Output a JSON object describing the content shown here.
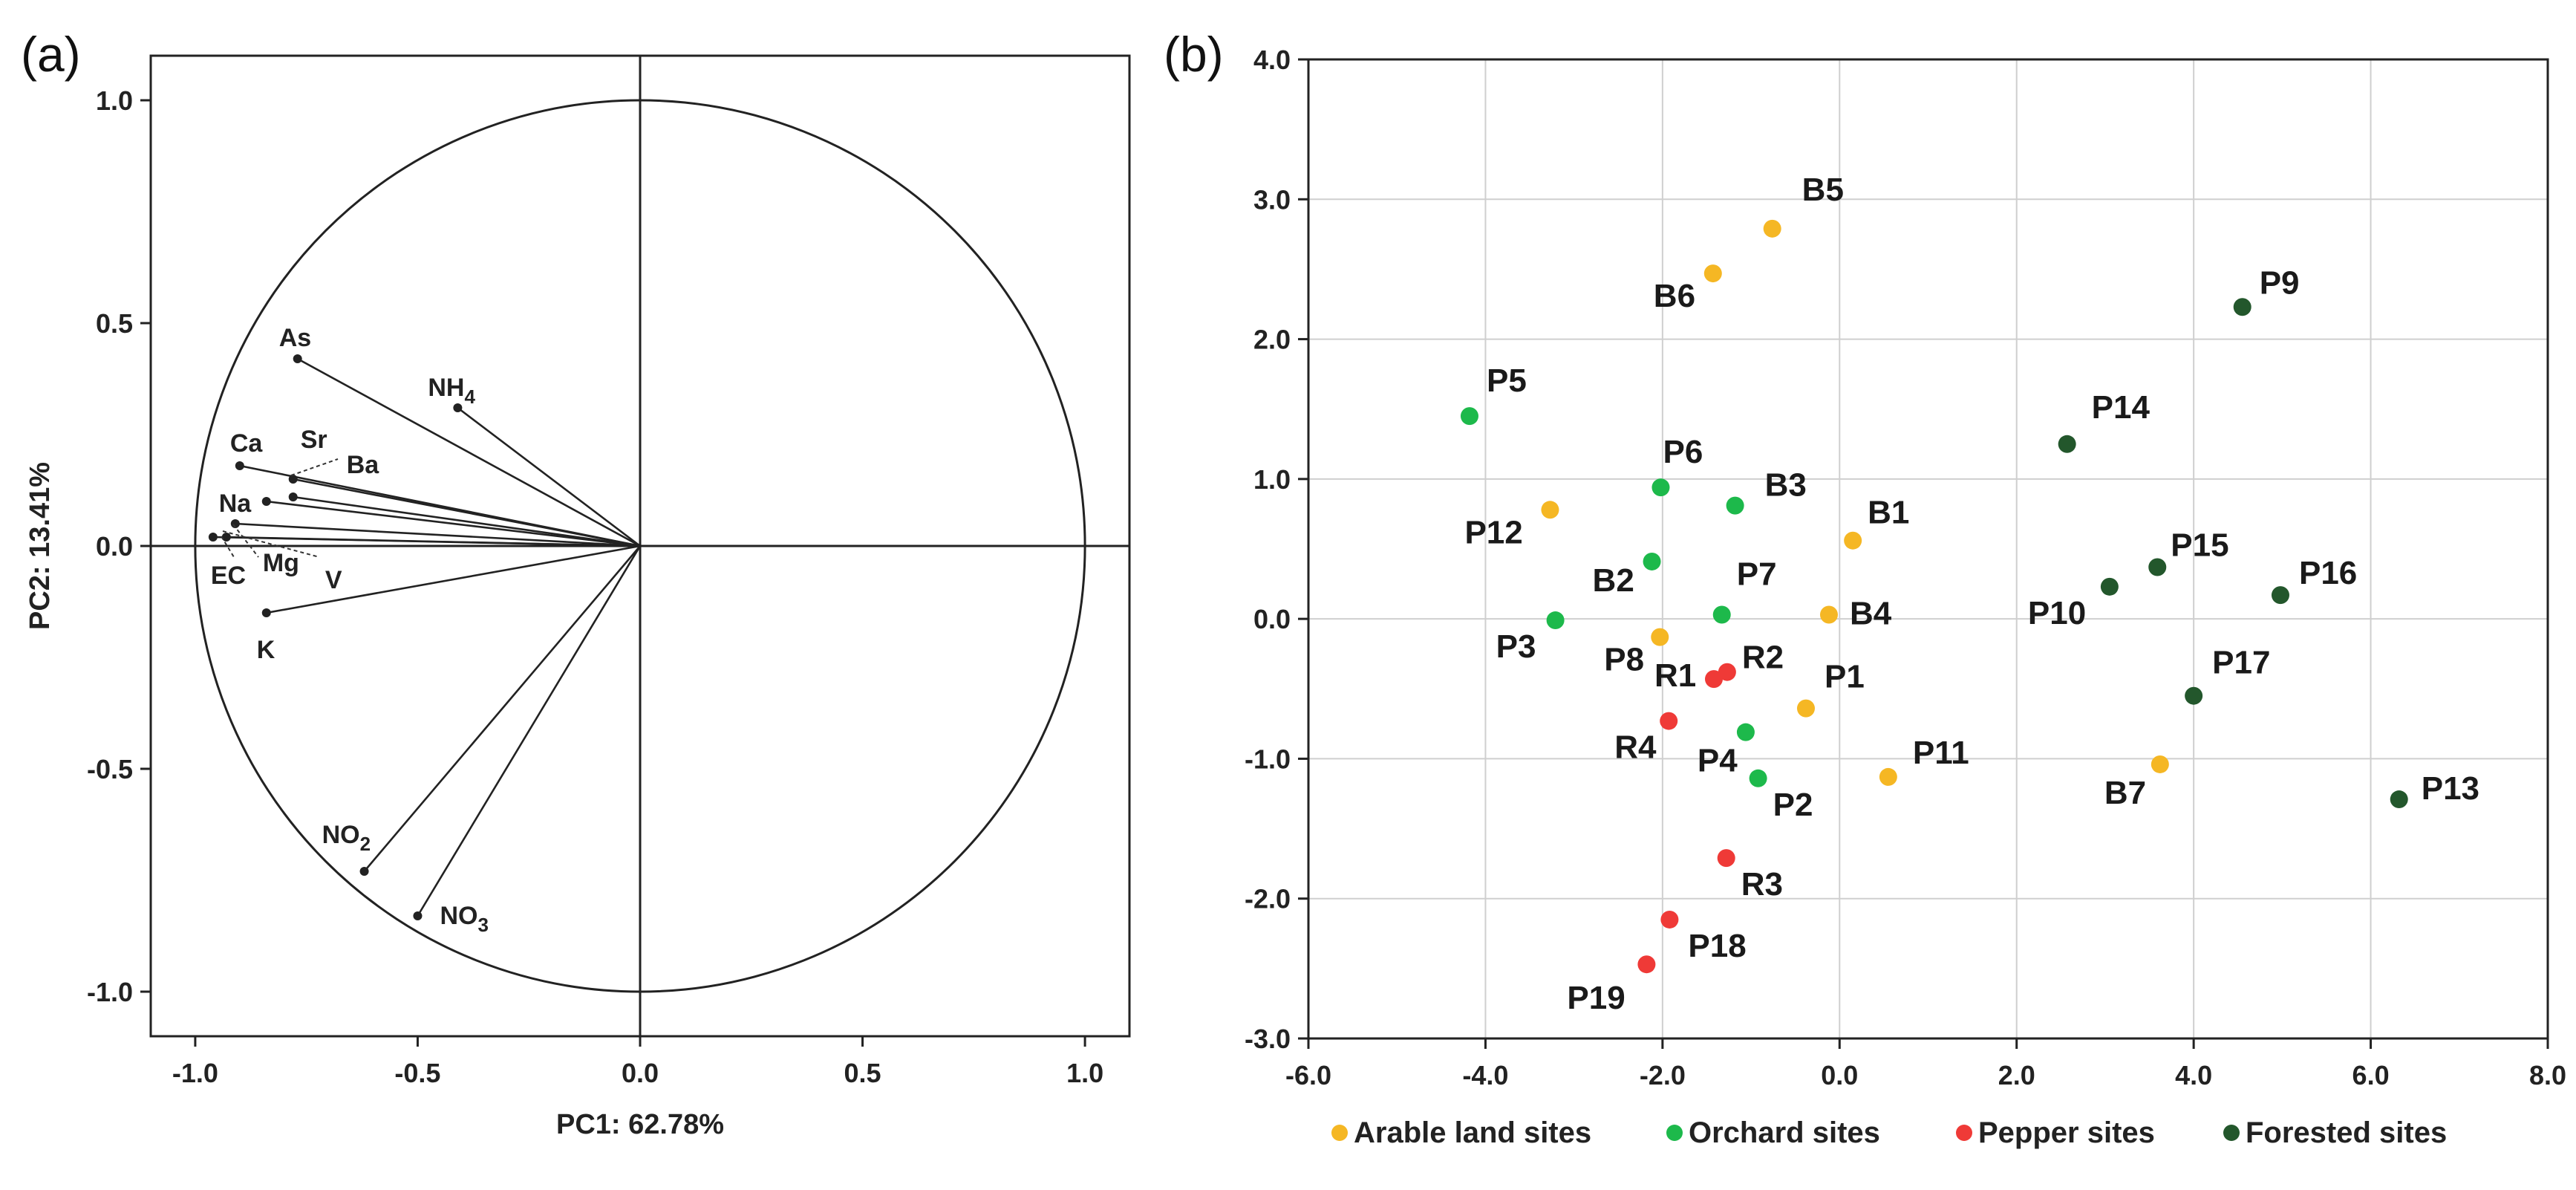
{
  "chart_data": [
    {
      "panel": "(a)",
      "type": "loading-plot",
      "xlabel": "PC1: 62.78%",
      "ylabel": "PC2: 13.41%",
      "xlim": [
        -1.1,
        1.1
      ],
      "ylim": [
        -1.1,
        1.1
      ],
      "xticks": [
        "-1.0",
        "-0.5",
        "0.0",
        "0.5",
        "1.0"
      ],
      "yticks": [
        "-1.0",
        "-0.5",
        "0.0",
        "0.5",
        "1.0"
      ],
      "unit_circle": true,
      "vectors": [
        {
          "id": "As",
          "label": "As",
          "x": -0.77,
          "y": 0.42
        },
        {
          "id": "NH4",
          "label": "NH",
          "sub": "4",
          "x": -0.41,
          "y": 0.31
        },
        {
          "id": "Sr",
          "label": "Sr",
          "x": -0.78,
          "y": 0.11
        },
        {
          "id": "Ca",
          "label": "Ca",
          "x": -0.9,
          "y": 0.18
        },
        {
          "id": "Ba",
          "label": "Ba",
          "x": -0.78,
          "y": 0.15
        },
        {
          "id": "Na",
          "label": "Na",
          "x": -0.84,
          "y": 0.1
        },
        {
          "id": "Mg",
          "label": "Mg",
          "x": -0.91,
          "y": 0.05
        },
        {
          "id": "V",
          "label": "V",
          "x": -0.93,
          "y": 0.02
        },
        {
          "id": "EC",
          "label": "EC",
          "x": -0.96,
          "y": 0.02
        },
        {
          "id": "K",
          "label": "K",
          "x": -0.84,
          "y": -0.15
        },
        {
          "id": "NO2",
          "label": "NO",
          "sub": "2",
          "x": -0.62,
          "y": -0.73
        },
        {
          "id": "NO3",
          "label": "NO",
          "sub": "3",
          "x": -0.5,
          "y": -0.83
        }
      ]
    },
    {
      "panel": "(b)",
      "type": "scatter",
      "xlim": [
        -6,
        8
      ],
      "ylim": [
        -3,
        4
      ],
      "xticks": [
        "-6.0",
        "-4.0",
        "-2.0",
        "0.0",
        "2.0",
        "4.0",
        "6.0",
        "8.0"
      ],
      "yticks": [
        "-3.0",
        "-2.0",
        "-1.0",
        "0.0",
        "1.0",
        "2.0",
        "3.0",
        "4.0"
      ],
      "grid": true,
      "legend_position": "bottom",
      "series": [
        {
          "name": "Arable land sites",
          "color": "#F5B724",
          "points": [
            {
              "label": "B5",
              "x": -0.76,
              "y": 2.79
            },
            {
              "label": "B6",
              "x": -1.43,
              "y": 2.47
            },
            {
              "label": "P12",
              "x": -3.27,
              "y": 0.78
            },
            {
              "label": "B1",
              "x": 0.15,
              "y": 0.56
            },
            {
              "label": "B4",
              "x": -0.12,
              "y": 0.03
            },
            {
              "label": "P8",
              "x": -2.03,
              "y": -0.13
            },
            {
              "label": "P1",
              "x": -0.38,
              "y": -0.64
            },
            {
              "label": "P11",
              "x": 0.55,
              "y": -1.13
            },
            {
              "label": "B7",
              "x": 3.62,
              "y": -1.04
            }
          ]
        },
        {
          "name": "Orchard sites",
          "color": "#1DB94B",
          "points": [
            {
              "label": "P5",
              "x": -4.18,
              "y": 1.45
            },
            {
              "label": "P6",
              "x": -2.02,
              "y": 0.94
            },
            {
              "label": "B3",
              "x": -1.18,
              "y": 0.81
            },
            {
              "label": "B2",
              "x": -2.12,
              "y": 0.41
            },
            {
              "label": "P7",
              "x": -1.33,
              "y": 0.03
            },
            {
              "label": "P3",
              "x": -3.21,
              "y": -0.01
            },
            {
              "label": "P4",
              "x": -1.06,
              "y": -0.81
            },
            {
              "label": "P2",
              "x": -0.92,
              "y": -1.14
            }
          ]
        },
        {
          "name": "Pepper sites",
          "color": "#EF3A37",
          "points": [
            {
              "label": "R1",
              "x": -1.42,
              "y": -0.43
            },
            {
              "label": "R2",
              "x": -1.27,
              "y": -0.38
            },
            {
              "label": "R4",
              "x": -1.93,
              "y": -0.73
            },
            {
              "label": "R3",
              "x": -1.28,
              "y": -1.71
            },
            {
              "label": "P18",
              "x": -1.92,
              "y": -2.15
            },
            {
              "label": "P19",
              "x": -2.18,
              "y": -2.47
            }
          ]
        },
        {
          "name": "Forested sites",
          "color": "#23572C",
          "points": [
            {
              "label": "P9",
              "x": 4.55,
              "y": 2.23
            },
            {
              "label": "P14",
              "x": 2.57,
              "y": 1.25
            },
            {
              "label": "P15",
              "x": 3.59,
              "y": 0.37
            },
            {
              "label": "P16",
              "x": 4.98,
              "y": 0.17
            },
            {
              "label": "P10",
              "x": 3.05,
              "y": 0.23
            },
            {
              "label": "P17",
              "x": 4.0,
              "y": -0.55
            },
            {
              "label": "P13",
              "x": 6.32,
              "y": -1.29
            }
          ]
        }
      ]
    }
  ]
}
